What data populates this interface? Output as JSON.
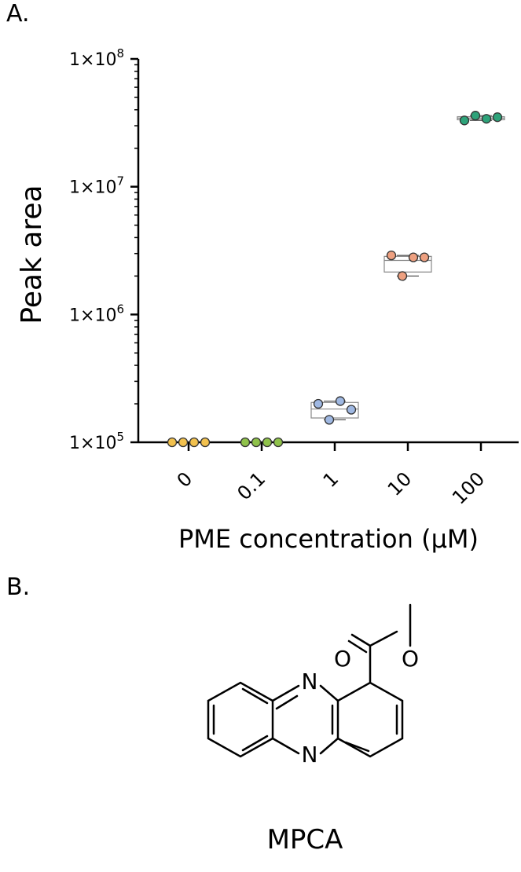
{
  "panels": {
    "a_label": "A.",
    "b_label": "B."
  },
  "chart_data": {
    "type": "scatter",
    "title": "",
    "xlabel": "PME concentration (µM)",
    "ylabel": "Peak area",
    "y_scale": "log",
    "ylim": [
      100000,
      100000000
    ],
    "y_ticks": [
      {
        "value": 100000,
        "label": "1×10",
        "exp": "5"
      },
      {
        "value": 1000000,
        "label": "1×10",
        "exp": "6"
      },
      {
        "value": 10000000,
        "label": "1×10",
        "exp": "7"
      },
      {
        "value": 100000000,
        "label": "1×10",
        "exp": "8"
      }
    ],
    "categories": [
      "0",
      "0.1",
      "1",
      "10",
      "100"
    ],
    "grid": false,
    "series": [
      {
        "category": "0",
        "color": "#f2c14e",
        "points": [
          100000,
          100000,
          100000,
          100000
        ],
        "box": {
          "q1": 100000,
          "median": 100000,
          "q3": 100000
        }
      },
      {
        "category": "0.1",
        "color": "#8fc24a",
        "points": [
          100000,
          100000,
          100000,
          100000
        ],
        "box": {
          "q1": 100000,
          "median": 100000,
          "q3": 100000
        }
      },
      {
        "category": "1",
        "color": "#9fb8e2",
        "points": [
          200000,
          150000,
          210000,
          180000
        ],
        "box": {
          "q1": 155000,
          "median": 182000,
          "q3": 205000
        }
      },
      {
        "category": "10",
        "color": "#eea080",
        "points": [
          2900000,
          2000000,
          2800000,
          2800000
        ],
        "box": {
          "q1": 2150000,
          "median": 2650000,
          "q3": 2850000
        }
      },
      {
        "category": "100",
        "color": "#2ea37a",
        "points": [
          33000000,
          36000000,
          34000000,
          35000000
        ],
        "box": {
          "q1": 33400000,
          "median": 34400000,
          "q3": 35300000
        }
      }
    ]
  },
  "structure": {
    "name": "MPCA",
    "atoms": {
      "n_top": "N",
      "n_bottom": "N",
      "o_carbonyl": "O",
      "o_ester": "O"
    }
  }
}
